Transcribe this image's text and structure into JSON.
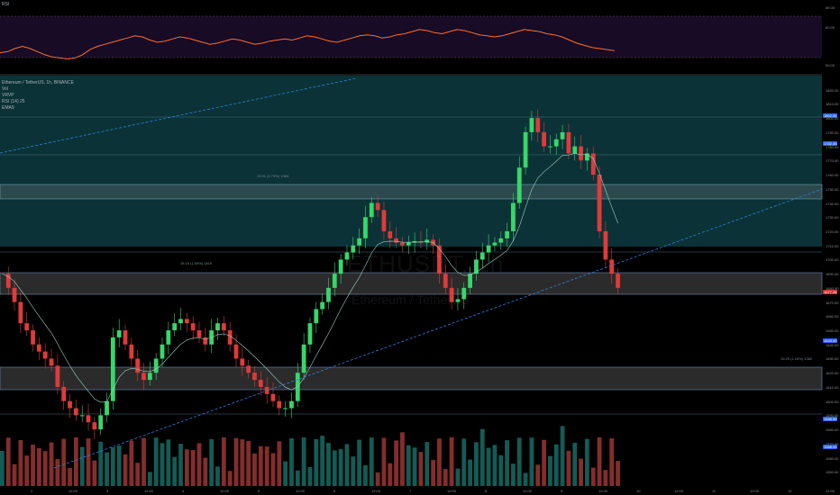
{
  "indicator_pane": {
    "title": "RSI",
    "levels": [
      "80.00",
      "60.00",
      "50.00"
    ]
  },
  "legend": {
    "symbol_line": "Ethereum / TetherUS, 1h, BINANCE",
    "indicators": [
      "Vol",
      "VRVP",
      "RSI (14) 25",
      "EMA9"
    ]
  },
  "watermark": {
    "ticker": "ETHUSDT, 1h",
    "name": "Ethereum / TetherUS"
  },
  "zone_labels": [
    "13.91 (0.79%) 1383",
    "18.15 (1.09%) 1819",
    "19.29 (1.16%) 1382"
  ],
  "price_axis": {
    "ticks": [
      "1820.00",
      "1810.00",
      "1800.00",
      "1790.00",
      "1780.00",
      "1770.00",
      "1760.00",
      "1750.00",
      "1740.00",
      "1730.00",
      "1720.00",
      "1710.00",
      "1700.00",
      "1690.00",
      "1680.00",
      "1670.00",
      "1660.00",
      "1650.00",
      "1640.00",
      "1630.00",
      "1620.00",
      "1610.00",
      "1600.00",
      "1590.00",
      "1580.00",
      "1570.00",
      "1560.00",
      "1550.00"
    ],
    "badges": [
      {
        "label": "1802.00",
        "color": "#2962ff"
      },
      {
        "label": "1782.45",
        "color": "#2962ff"
      },
      {
        "label": "1677.26",
        "color": "#d32f2f"
      },
      {
        "label": "1643.00",
        "color": "#2962ff"
      },
      {
        "label": "1588.00",
        "color": "#2962ff"
      },
      {
        "label": "1568.00",
        "color": "#2962ff"
      }
    ]
  },
  "time_axis": {
    "ticks": [
      "2",
      "12:00",
      "3",
      "12:00",
      "4",
      "12:00",
      "5",
      "12:00",
      "6",
      "12:00",
      "7",
      "12:00",
      "8",
      "12:00",
      "9",
      "12:00",
      "10",
      "12:00",
      "11",
      "12:00",
      "12",
      "12:00"
    ]
  },
  "colors": {
    "up": "#26a69a",
    "down": "#ef5350",
    "rsi_line": "#ff6d2e",
    "trendline": "#2f7fe0",
    "zone_teal": "#0d3b3f",
    "zone_grey": "#2b2b2b"
  },
  "chart_data": {
    "type": "candlestick",
    "symbol": "ETHUSDT",
    "interval": "1h",
    "ylim": [
      1540,
      1830
    ],
    "price_path": [
      1690,
      1680,
      1670,
      1655,
      1650,
      1640,
      1635,
      1630,
      1625,
      1610,
      1600,
      1595,
      1590,
      1590,
      1585,
      1580,
      1590,
      1600,
      1645,
      1650,
      1640,
      1630,
      1620,
      1615,
      1620,
      1630,
      1640,
      1650,
      1655,
      1658,
      1655,
      1650,
      1645,
      1640,
      1650,
      1655,
      1650,
      1640,
      1630,
      1625,
      1620,
      1615,
      1610,
      1605,
      1600,
      1595,
      1595,
      1600,
      1620,
      1640,
      1655,
      1665,
      1670,
      1680,
      1690,
      1700,
      1705,
      1710,
      1715,
      1730,
      1740,
      1735,
      1720,
      1715,
      1712,
      1710,
      1712,
      1713,
      1712,
      1714,
      1710,
      1690,
      1680,
      1670,
      1672,
      1680,
      1690,
      1700,
      1705,
      1710,
      1712,
      1715,
      1720,
      1740,
      1765,
      1790,
      1800,
      1790,
      1780,
      1780,
      1785,
      1790,
      1775,
      1780,
      1770,
      1775,
      1760,
      1720,
      1700,
      1690,
      1680
    ],
    "rsi": [
      40,
      41,
      44,
      46,
      44,
      41,
      38,
      36,
      35,
      34,
      35,
      38,
      43,
      46,
      48,
      50,
      52,
      54,
      56,
      55,
      52,
      50,
      51,
      53,
      55,
      54,
      52,
      50,
      48,
      49,
      51,
      53,
      52,
      50,
      48,
      49,
      51,
      52,
      53,
      52,
      54,
      56,
      55,
      53,
      51,
      50,
      52,
      54,
      56,
      57,
      56,
      54,
      55,
      57,
      58,
      60,
      62,
      61,
      59,
      58,
      60,
      62,
      61,
      59,
      57,
      56,
      55,
      56,
      58,
      60,
      62,
      61,
      60,
      58,
      57,
      55,
      52,
      49,
      47,
      45,
      44,
      43,
      42
    ]
  }
}
